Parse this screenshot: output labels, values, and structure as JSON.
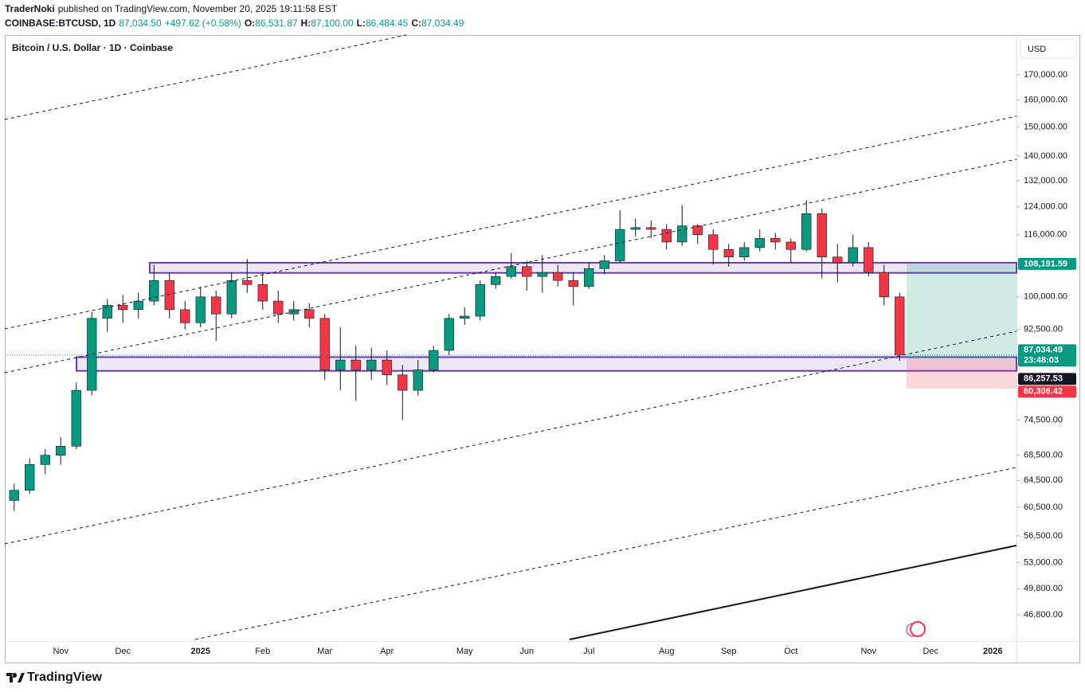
{
  "header": {
    "author": "TraderNoki",
    "published": "published on TradingView.com, November 20, 2025 19:11:58 EST",
    "symbol": "COINBASE:BTCUSD, 1D",
    "last": "87,034.50",
    "change": "+497.62 (+0.58%)",
    "ohlc": [
      {
        "label": "O:",
        "value": "86,531.87"
      },
      {
        "label": "H:",
        "value": "87,100.00"
      },
      {
        "label": "L:",
        "value": "86,484.45"
      },
      {
        "label": "C:",
        "value": "87,034.49"
      }
    ]
  },
  "footer": "TradingView",
  "chart_data": {
    "type": "candlestick",
    "title": "Bitcoin / U.S. Dollar · 1D · Coinbase",
    "currency": "USD",
    "log_scale": true,
    "up_color": "#089981",
    "down_color": "#f23645",
    "categories": [
      null,
      null,
      null,
      "Nov",
      null,
      null,
      null,
      "Dec",
      null,
      null,
      null,
      null,
      "2025",
      null,
      null,
      null,
      "Feb",
      null,
      null,
      null,
      "Mar",
      null,
      null,
      null,
      "Apr",
      null,
      null,
      null,
      null,
      "May",
      null,
      null,
      null,
      "Jun",
      null,
      null,
      null,
      "Jul",
      null,
      null,
      null,
      null,
      "Aug",
      null,
      null,
      null,
      "Sep",
      null,
      null,
      null,
      "Oct",
      null,
      null,
      null,
      null,
      "Nov",
      null,
      null,
      null,
      "Dec",
      null,
      null,
      null,
      "2026",
      null
    ],
    "open": [
      61500,
      63000,
      67000,
      68500,
      70000,
      80000,
      95000,
      98000,
      97000,
      99000,
      104000,
      97000,
      94000,
      100000,
      96000,
      104000,
      103000,
      99000,
      96000,
      97000,
      95000,
      84000,
      86000,
      84000,
      86000,
      83000,
      80000,
      84000,
      88000,
      95000,
      95500,
      103000,
      105000,
      107500,
      105000,
      106000,
      104000,
      102500,
      107000,
      109000,
      117500,
      118000,
      117500,
      114000,
      118500,
      116000,
      112000,
      110000,
      112500,
      115000,
      114000,
      112000,
      122000,
      110000,
      108500,
      112500,
      106000,
      100000,
      null,
      null,
      null,
      null,
      null,
      null,
      null
    ],
    "high": [
      64000,
      68000,
      69500,
      71500,
      81500,
      96500,
      99500,
      100500,
      101000,
      108000,
      106000,
      99000,
      102500,
      101500,
      106000,
      109500,
      106000,
      101500,
      99000,
      98500,
      96000,
      93000,
      89000,
      88500,
      88000,
      85000,
      86000,
      89000,
      96000,
      97500,
      104000,
      106000,
      111000,
      109000,
      110500,
      108000,
      106000,
      108500,
      110500,
      123000,
      120500,
      120000,
      119000,
      124500,
      119000,
      117500,
      113500,
      114000,
      117500,
      116500,
      115000,
      126000,
      123500,
      113500,
      116000,
      114000,
      108000,
      101000,
      null,
      null,
      null,
      null,
      null,
      null,
      null
    ],
    "low": [
      60000,
      62500,
      65500,
      67000,
      69500,
      79000,
      92000,
      94000,
      95000,
      98000,
      95000,
      92500,
      93000,
      90000,
      95000,
      101000,
      97000,
      94000,
      94500,
      93000,
      82000,
      80000,
      78000,
      82000,
      81000,
      74500,
      79000,
      83500,
      87000,
      93500,
      94500,
      102000,
      104500,
      101500,
      101000,
      102500,
      98000,
      102000,
      105500,
      108500,
      115500,
      115000,
      112000,
      113000,
      113500,
      108000,
      107500,
      109000,
      111500,
      112000,
      108500,
      111500,
      104500,
      103500,
      107500,
      105000,
      98000,
      85800,
      null,
      null,
      null,
      null,
      null,
      null,
      null
    ],
    "close": [
      63000,
      67000,
      68500,
      70000,
      80000,
      95000,
      98000,
      97000,
      99000,
      104000,
      97000,
      94000,
      100000,
      96000,
      104000,
      103000,
      99000,
      96000,
      97000,
      95000,
      84000,
      86000,
      84000,
      86000,
      83000,
      80000,
      84000,
      88000,
      95000,
      95500,
      103000,
      105000,
      107500,
      105000,
      106000,
      104000,
      102500,
      107000,
      109000,
      117500,
      118000,
      117500,
      114000,
      118500,
      116000,
      112000,
      110000,
      112500,
      115000,
      114000,
      112000,
      122000,
      110000,
      108500,
      112500,
      106000,
      100000,
      87034.49,
      null,
      null,
      null,
      null,
      null,
      null,
      null
    ],
    "ylim": [
      43950,
      185500
    ],
    "yticks": [
      {
        "value": 46800,
        "label": "46,800.00"
      },
      {
        "value": 49800,
        "label": "49,800.00"
      },
      {
        "value": 53000,
        "label": "53,000.00"
      },
      {
        "value": 56500,
        "label": "56,500.00"
      },
      {
        "value": 60500,
        "label": "60,500.00"
      },
      {
        "value": 64500,
        "label": "64,500.00"
      },
      {
        "value": 68500,
        "label": "68,500.00"
      },
      {
        "value": 74500,
        "label": "74,500.00"
      },
      {
        "value": 92500,
        "label": "92,500.00"
      },
      {
        "value": 100000,
        "label": "100,000.00"
      },
      {
        "value": 116000,
        "label": "116,000.00"
      },
      {
        "value": 124000,
        "label": "124,000.00"
      },
      {
        "value": 132000,
        "label": "132,000.00"
      },
      {
        "value": 140000,
        "label": "140,000.00"
      },
      {
        "value": 150000,
        "label": "150,000.00"
      },
      {
        "value": 160000,
        "label": "160,000.00"
      },
      {
        "value": 170000,
        "label": "170,000.00"
      }
    ],
    "zones": [
      {
        "top": 108500,
        "bottom": 105900,
        "color": "#673ab7"
      },
      {
        "top": 86600,
        "bottom": 83800,
        "color": "#673ab7"
      }
    ],
    "price_labels": [
      {
        "value": 108191.59,
        "label": "108,191.59",
        "color": "#089981"
      },
      {
        "value": 87034.49,
        "label": "87,034.49",
        "countdown": "23:48:03",
        "color": "#089981"
      },
      {
        "value": 86257.53,
        "label": "86,257.53",
        "color": "#131722"
      },
      {
        "value": 80306.42,
        "label": "80,306.42",
        "color": "#f23645"
      }
    ]
  }
}
